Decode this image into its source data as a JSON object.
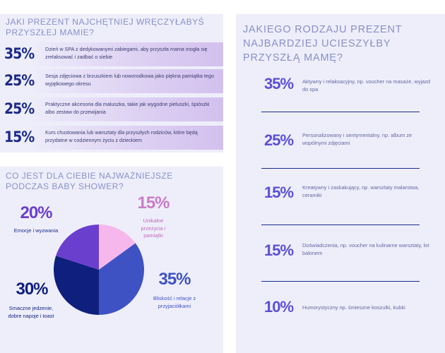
{
  "gifts": {
    "title": "JAKI PREZENT NAJCHĘTNIEJ WRĘCZYŁABYŚ PRZYSZŁEJ MAMIE?",
    "items": [
      {
        "pct": "35%",
        "text": "Dzień w SPA z dedykowanymi zabiegami, aby przyszła mama mogła się zrelaksować i zadbać o siebie"
      },
      {
        "pct": "25%",
        "text": "Sesja zdjęciowa z brzuszkiem lub noworodkowa jako piękna pamiątka tego wyjątkowego okresu"
      },
      {
        "pct": "25%",
        "text": "Praktyczne akcesoria dla maluszka, takie jak wygodne pieluszki, śpiószki albo zestaw do przewijania"
      },
      {
        "pct": "15%",
        "text": "Kurs chustowania lub warsztaty dla przyszłych rodziców, które będą przydatne w codziennym życiu z dzieckiem"
      }
    ]
  },
  "shower": {
    "title": "CO JEST DLA CIEBIE NAJWAŻNIEJSZE PODCZAS BABY SHOWER?"
  },
  "chart_data": {
    "type": "pie",
    "title": "CO JEST DLA CIEBIE NAJWAŻNIEJSZE PODCZAS BABY SHOWER?",
    "slices": [
      {
        "label": "Unikalne przeżycia i pamiątki",
        "pct_label": "15%",
        "value": 15,
        "color": "#f6b8ec"
      },
      {
        "label": "Bliskość i relacje z przyjaciółkami",
        "pct_label": "35%",
        "value": 35,
        "color": "#3f52c4"
      },
      {
        "label": "Smaczne jedzenie, dobre napoje i toast",
        "pct_label": "30%",
        "value": 30,
        "color": "#0f1f7e"
      },
      {
        "label": "Emocje i wyzwania",
        "pct_label": "20%",
        "value": 20,
        "color": "#6a3fce"
      }
    ]
  },
  "kinds": {
    "title": "JAKIEGO RODZAJU PREZENT NAJBARDZIEJ UCIESZYŁBY PRZYSZŁĄ MAMĘ?",
    "items": [
      {
        "pct": "35%",
        "text": "Aktywny i relaksacyjny, np. voucher na masaże, wyjazd do spa"
      },
      {
        "pct": "25%",
        "text": "Personalizowany i sentymentalny, np. album ze wspólnymi zdjęciami"
      },
      {
        "pct": "15%",
        "text": "Kreatywny i zaskakujący, np. warsztaty malarstwa, ceramiki"
      },
      {
        "pct": "15%",
        "text": "Doświadczenia, np. voucher na kulinarne warsztaty, lot balonem"
      },
      {
        "pct": "10%",
        "text": "Humorystyczny np. śmieszne koszulki, kubki"
      }
    ]
  }
}
